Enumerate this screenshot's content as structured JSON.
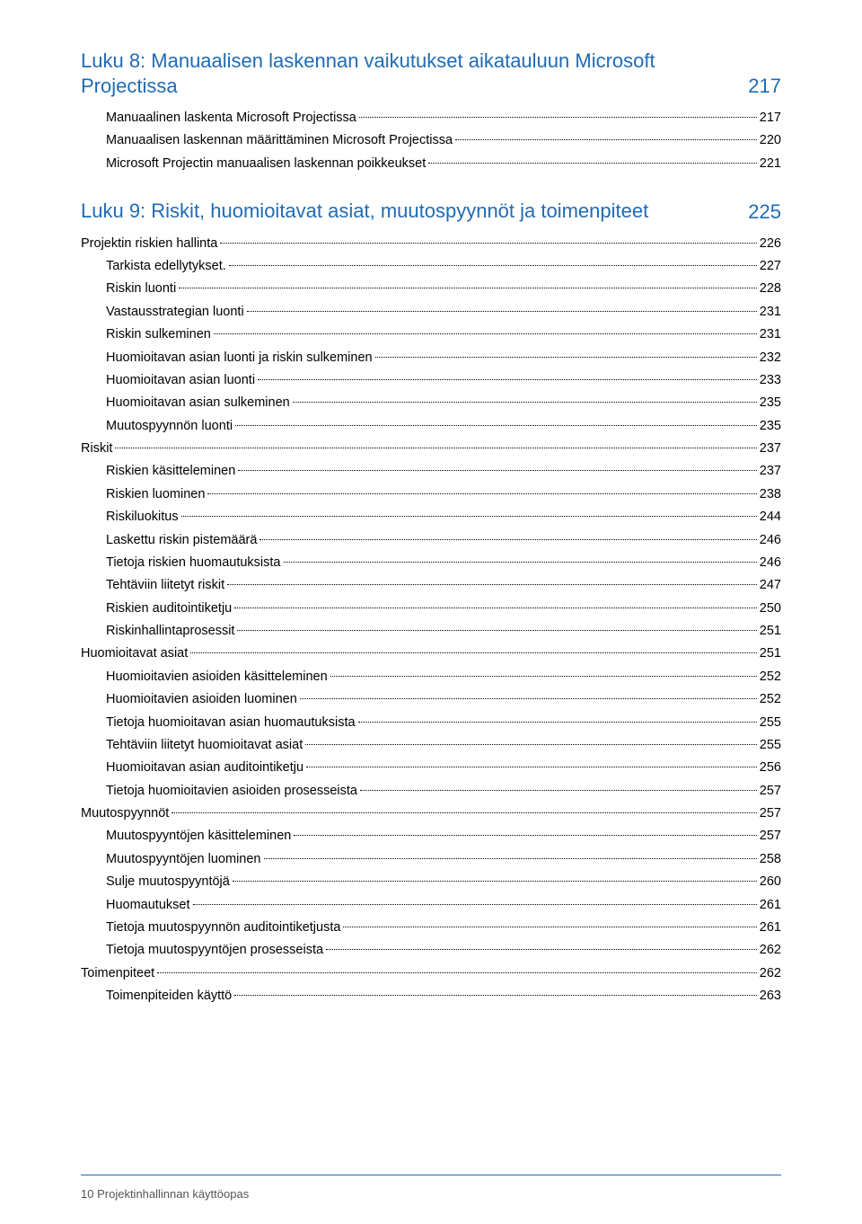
{
  "colors": {
    "accent": "#1f6bb5",
    "text": "#000000",
    "footer_text": "#555555",
    "background": "#ffffff"
  },
  "typography": {
    "chapter_title_fontsize": 22,
    "toc_fontsize": 14.5,
    "footer_fontsize": 13
  },
  "chapters": [
    {
      "title": "Luku 8: Manuaalisen laskennan vaikutukset aikatauluun Microsoft Projectissa",
      "page": "217",
      "entries": [
        {
          "level": 1,
          "label": "Manuaalinen laskenta Microsoft Projectissa",
          "page": "217"
        },
        {
          "level": 1,
          "label": "Manuaalisen laskennan määrittäminen Microsoft Projectissa",
          "page": "220"
        },
        {
          "level": 1,
          "label": "Microsoft Projectin manuaalisen laskennan poikkeukset",
          "page": "221"
        }
      ]
    },
    {
      "title": "Luku 9: Riskit, huomioitavat asiat, muutospyynnöt ja toimenpiteet",
      "page": "225",
      "entries": [
        {
          "level": 0,
          "label": "Projektin riskien hallinta",
          "page": "226"
        },
        {
          "level": 1,
          "label": "Tarkista edellytykset. ",
          "page": "227"
        },
        {
          "level": 1,
          "label": "Riskin luonti",
          "page": "228"
        },
        {
          "level": 1,
          "label": "Vastausstrategian luonti",
          "page": "231"
        },
        {
          "level": 1,
          "label": "Riskin sulkeminen",
          "page": "231"
        },
        {
          "level": 1,
          "label": "Huomioitavan asian luonti ja riskin sulkeminen",
          "page": "232"
        },
        {
          "level": 1,
          "label": "Huomioitavan asian luonti",
          "page": "233"
        },
        {
          "level": 1,
          "label": "Huomioitavan asian sulkeminen",
          "page": "235"
        },
        {
          "level": 1,
          "label": "Muutospyynnön luonti",
          "page": "235"
        },
        {
          "level": 0,
          "label": "Riskit",
          "page": "237"
        },
        {
          "level": 1,
          "label": "Riskien käsitteleminen",
          "page": "237"
        },
        {
          "level": 1,
          "label": "Riskien luominen",
          "page": "238"
        },
        {
          "level": 1,
          "label": "Riskiluokitus",
          "page": "244"
        },
        {
          "level": 1,
          "label": "Laskettu riskin pistemäärä",
          "page": "246"
        },
        {
          "level": 1,
          "label": "Tietoja riskien huomautuksista",
          "page": "246"
        },
        {
          "level": 1,
          "label": "Tehtäviin liitetyt riskit",
          "page": "247"
        },
        {
          "level": 1,
          "label": "Riskien auditointiketju",
          "page": "250"
        },
        {
          "level": 1,
          "label": "Riskinhallintaprosessit",
          "page": "251"
        },
        {
          "level": 0,
          "label": "Huomioitavat asiat",
          "page": "251"
        },
        {
          "level": 1,
          "label": "Huomioitavien asioiden käsitteleminen",
          "page": "252"
        },
        {
          "level": 1,
          "label": "Huomioitavien asioiden luominen",
          "page": "252"
        },
        {
          "level": 1,
          "label": "Tietoja huomioitavan asian huomautuksista",
          "page": "255"
        },
        {
          "level": 1,
          "label": "Tehtäviin liitetyt huomioitavat asiat",
          "page": "255"
        },
        {
          "level": 1,
          "label": "Huomioitavan asian auditointiketju",
          "page": "256"
        },
        {
          "level": 1,
          "label": "Tietoja huomioitavien asioiden prosesseista",
          "page": "257"
        },
        {
          "level": 0,
          "label": "Muutospyynnöt",
          "page": "257"
        },
        {
          "level": 1,
          "label": "Muutospyyntöjen käsitteleminen",
          "page": "257"
        },
        {
          "level": 1,
          "label": "Muutospyyntöjen luominen",
          "page": "258"
        },
        {
          "level": 1,
          "label": "Sulje muutospyyntöjä",
          "page": "260"
        },
        {
          "level": 1,
          "label": "Huomautukset",
          "page": "261"
        },
        {
          "level": 1,
          "label": "Tietoja muutospyynnön auditointiketjusta",
          "page": "261"
        },
        {
          "level": 1,
          "label": "Tietoja muutospyyntöjen prosesseista",
          "page": "262"
        },
        {
          "level": 0,
          "label": "Toimenpiteet",
          "page": "262"
        },
        {
          "level": 1,
          "label": "Toimenpiteiden käyttö",
          "page": "263"
        }
      ]
    }
  ],
  "footer": {
    "page_number": "10",
    "doc_title": "Projektinhallinnan käyttöopas"
  }
}
